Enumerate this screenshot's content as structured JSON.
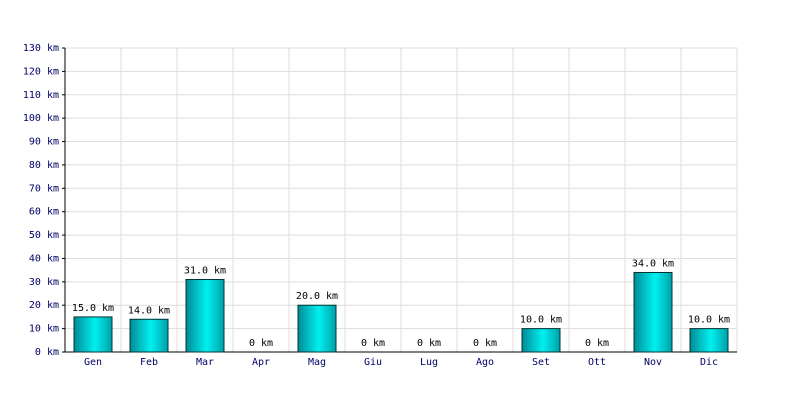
{
  "chart_data": {
    "type": "bar",
    "categories": [
      "Gen",
      "Feb",
      "Mar",
      "Apr",
      "Mag",
      "Giu",
      "Lug",
      "Ago",
      "Set",
      "Ott",
      "Nov",
      "Dic"
    ],
    "values": [
      15,
      14,
      31,
      0,
      20,
      0,
      0,
      0,
      10,
      0,
      34,
      10
    ],
    "value_labels": [
      "15.0 km",
      "14.0 km",
      "31.0 km",
      "0 km",
      "20.0 km",
      "0 km",
      "0 km",
      "0 km",
      "10.0 km",
      "0 km",
      "34.0 km",
      "10.0 km"
    ],
    "color": "#00c8c8",
    "ylim": [
      0,
      130
    ],
    "yticks": [
      {
        "value": 0,
        "label": "0 km"
      },
      {
        "value": 10,
        "label": "10 km"
      },
      {
        "value": 20,
        "label": "20 km"
      },
      {
        "value": 30,
        "label": "30 km"
      },
      {
        "value": 40,
        "label": "40 km"
      },
      {
        "value": 50,
        "label": "50 km"
      },
      {
        "value": 60,
        "label": "60 km"
      },
      {
        "value": 70,
        "label": "70 km"
      },
      {
        "value": 80,
        "label": "80 km"
      },
      {
        "value": 90,
        "label": "90 km"
      },
      {
        "value": 100,
        "label": "100 km"
      },
      {
        "value": 110,
        "label": "110 km"
      },
      {
        "value": 120,
        "label": "120 km"
      },
      {
        "value": 130,
        "label": "130 km"
      }
    ],
    "grid": true
  }
}
